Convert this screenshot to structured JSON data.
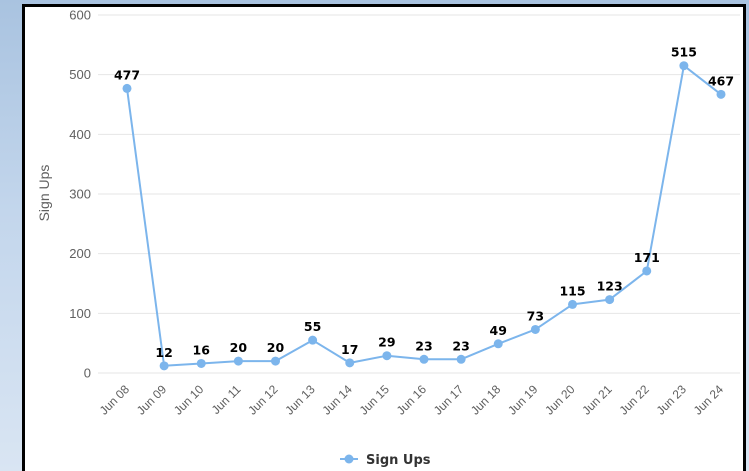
{
  "chart_data": {
    "type": "line",
    "categories": [
      "Jun 08",
      "Jun 09",
      "Jun 10",
      "Jun 11",
      "Jun 12",
      "Jun 13",
      "Jun 14",
      "Jun 15",
      "Jun 16",
      "Jun 17",
      "Jun 18",
      "Jun 19",
      "Jun 20",
      "Jun 21",
      "Jun 22",
      "Jun 23",
      "Jun 24"
    ],
    "series": [
      {
        "name": "Sign Ups",
        "values": [
          477,
          12,
          16,
          20,
          20,
          55,
          17,
          29,
          23,
          23,
          49,
          73,
          115,
          123,
          171,
          515,
          467
        ]
      }
    ],
    "ylabel": "Sign Ups",
    "ylim": [
      0,
      600
    ],
    "yticks": [
      0,
      100,
      200,
      300,
      400,
      500,
      600
    ],
    "grid": true,
    "legend": "bottom-center",
    "data_labels": true,
    "colors": {
      "series": "#7cb5ec",
      "grid": "#e6e6e6",
      "tick_text": "#606060"
    }
  }
}
